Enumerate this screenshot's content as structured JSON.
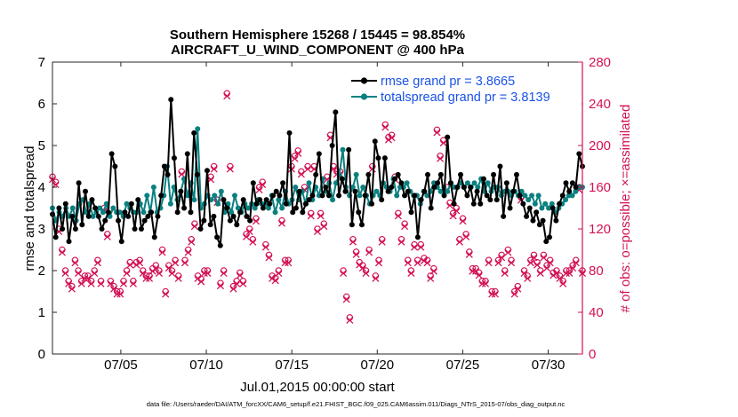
{
  "chart_data": {
    "type": "line",
    "title_line1": "Southern Hemisphere 15268 / 15445 = 98.854%",
    "title_line2": "AIRCRAFT_U_WIND_COMPONENT @ 400 hPa",
    "xlabel": "Jul.01,2015 00:00:00 start",
    "ylabel": "rmse and totalspread",
    "ylabel_right": "# of obs: o=possible; ×=assimilated",
    "footnote": "data file: /Users/raeder/DAI/ATM_forcXX/CAM6_setup/f.e21.FHIST_BGC.f09_025.CAM6assim.011/Diags_NTrS_2015-07/obs_diag_output.nc",
    "x_tick_labels": [
      "07/05",
      "07/10",
      "07/15",
      "07/20",
      "07/25",
      "07/30"
    ],
    "x_tick_days": [
      5,
      10,
      15,
      20,
      25,
      30
    ],
    "xlim_days": [
      1,
      32
    ],
    "ylim": [
      0,
      7
    ],
    "y_ticks": [
      "0",
      "1",
      "2",
      "3",
      "4",
      "5",
      "6",
      "7"
    ],
    "ylim_right": [
      0,
      280
    ],
    "y_ticks_right": [
      "0",
      "40",
      "80",
      "120",
      "160",
      "200",
      "240",
      "280"
    ],
    "colors": {
      "rmse": "#000000",
      "spread": "#0a8080",
      "obs": "#d21155",
      "legend_text": "#1a52e8"
    },
    "series": [
      {
        "name": "rmse",
        "legend": "rmse grand pr = 3.8665",
        "values": [
          3.35,
          2.8,
          3.5,
          3.0,
          3.6,
          2.7,
          3.3,
          3.0,
          4.1,
          3.1,
          3.9,
          3.3,
          3.7,
          3.5,
          3.3,
          3.0,
          3.2,
          3.4,
          4.8,
          4.5,
          3.2,
          2.7,
          3.4,
          3.3,
          3.6,
          3.0,
          3.7,
          3.0,
          3.2,
          3.3,
          3.4,
          2.8,
          3.3,
          3.8,
          4.5,
          4.3,
          6.1,
          4.7,
          3.4,
          3.9,
          3.5,
          4.8,
          3.4,
          5.3,
          4.3,
          3.0,
          3.2,
          4.4,
          3.1,
          3.3,
          2.8,
          2.6,
          3.7,
          3.5,
          3.2,
          3.3,
          3.1,
          3.4,
          3.7,
          3.3,
          3.2,
          4.1,
          3.6,
          3.7,
          3.5,
          3.7,
          3.6,
          3.8,
          3.9,
          3.8,
          4.1,
          3.6,
          5.3,
          3.4,
          3.5,
          3.9,
          3.4,
          3.6,
          3.7,
          3.8,
          4.3,
          4.8,
          3.8,
          4.0,
          3.8,
          5.0,
          5.8,
          3.8,
          4.2,
          3.9,
          4.9,
          3.1,
          3.9,
          3.4,
          3.1,
          3.8,
          4.3,
          3.6,
          5.1,
          4.7,
          3.7,
          4.7,
          3.9,
          4.0,
          4.2,
          4.3,
          4.1,
          3.8,
          3.9,
          3.4,
          3.8,
          2.8,
          3.7,
          3.9,
          4.3,
          3.5,
          4.0,
          4.1,
          4.3,
          3.8,
          5.2,
          4.1,
          3.6,
          4.0,
          4.3,
          4.0,
          3.8,
          4.0,
          3.6,
          3.9,
          3.6,
          4.2,
          3.8,
          3.7,
          4.3,
          3.7,
          4.5,
          3.3,
          4.1,
          3.5,
          3.9,
          4.3,
          3.8,
          3.6,
          3.3,
          3.5,
          3.2,
          3.4,
          3.1,
          3.2,
          2.7,
          2.8,
          3.5,
          3.2,
          3.6,
          3.8,
          4.1,
          3.9,
          4.1,
          4.0,
          4.8,
          4.5
        ],
        "values_note": "6-hourly, day 1.0 to 32.0"
      },
      {
        "name": "totalspread",
        "legend": "totalspread grand pr = 3.8139",
        "values": [
          3.5,
          3.2,
          3.4,
          3.3,
          3.5,
          3.3,
          3.5,
          3.2,
          3.6,
          3.7,
          3.4,
          3.6,
          3.3,
          3.4,
          3.5,
          3.4,
          3.6,
          3.3,
          3.5,
          3.4,
          3.4,
          3.3,
          3.6,
          3.5,
          3.4,
          3.4,
          3.6,
          3.4,
          3.8,
          3.4,
          4.0,
          3.4,
          3.5,
          3.8,
          4.5,
          3.6,
          4.0,
          3.7,
          3.9,
          4.2,
          3.8,
          4.1,
          3.7,
          5.4,
          3.5,
          3.6,
          3.8,
          3.7,
          3.8,
          3.6,
          3.9,
          3.4,
          3.6,
          3.4,
          3.8,
          3.5,
          3.4,
          3.6,
          3.5,
          3.6,
          3.5,
          3.7,
          3.6,
          3.6,
          3.5,
          3.8,
          3.4,
          3.7,
          3.5,
          3.9,
          3.6,
          3.7,
          4.0,
          3.7,
          3.9,
          3.6,
          4.1,
          3.7,
          4.0,
          3.8,
          4.2,
          3.9,
          4.1,
          3.7,
          4.1,
          4.3,
          4.9,
          4.0,
          3.8,
          4.0,
          4.3,
          3.8,
          4.0,
          3.8,
          3.6,
          3.8,
          3.9,
          3.8,
          4.1,
          4.0,
          3.9,
          4.2,
          3.8,
          4.0,
          4.0,
          4.1,
          3.9,
          3.8,
          3.8,
          3.6,
          3.9,
          3.8,
          3.9,
          4.1,
          4.0,
          3.9,
          4.0,
          3.9,
          4.1,
          4.0,
          4.0,
          4.1,
          4.0,
          4.1,
          4.0,
          4.1,
          4.0,
          4.2,
          3.9,
          4.1,
          3.9,
          4.0,
          4.0,
          3.8,
          3.9,
          3.9,
          3.8,
          3.9,
          3.8,
          3.9,
          3.8,
          3.7,
          3.8,
          3.6,
          3.8,
          3.5,
          3.6,
          3.5,
          3.6,
          3.4,
          3.5,
          3.6,
          3.7,
          3.8,
          3.8,
          3.9,
          4.0,
          4.0
        ],
        "values_note": "6-hourly, day 1.0 to 32.0"
      },
      {
        "name": "obs_possible",
        "axis": "right",
        "values": [
          170,
          165,
          120,
          100,
          80,
          70,
          65,
          90,
          80,
          70,
          75,
          75,
          70,
          80,
          90,
          70,
          140,
          115,
          70,
          65,
          60,
          60,
          70,
          80,
          88,
          70,
          88,
          90,
          80,
          75,
          75,
          82,
          85,
          80,
          100,
          60,
          85,
          80,
          90,
          75,
          175,
          90,
          100,
          110,
          125,
          75,
          72,
          80,
          80,
          170,
          180,
          148,
          68,
          80,
          250,
          180,
          65,
          70,
          78,
          70,
          115,
          120,
          110,
          130,
          160,
          165,
          105,
          95,
          75,
          73,
          80,
          128,
          90,
          90,
          180,
          190,
          195,
          175,
          160,
          180,
          135,
          180,
          120,
          135,
          125,
          170,
          210,
          180,
          175,
          175,
          80,
          55,
          35,
          110,
          98,
          88,
          85,
          80,
          100,
          180,
          75,
          90,
          110,
          220,
          208,
          210,
          170,
          135,
          110,
          125,
          90,
          80,
          105,
          90,
          105,
          92,
          90,
          75,
          82,
          215,
          190,
          205,
          160,
          145,
          135,
          140,
          110,
          130,
          115,
          98,
          82,
          82,
          78,
          70,
          70,
          90,
          60,
          60,
          90,
          95,
          80,
          100,
          90,
          60,
          65,
          150,
          80,
          75,
          90,
          95,
          88,
          80,
          95,
          85,
          90,
          78,
          80,
          75,
          70,
          80,
          80,
          85,
          90,
          160,
          80
        ],
        "values_note": "approximate; o=possible"
      }
    ]
  }
}
